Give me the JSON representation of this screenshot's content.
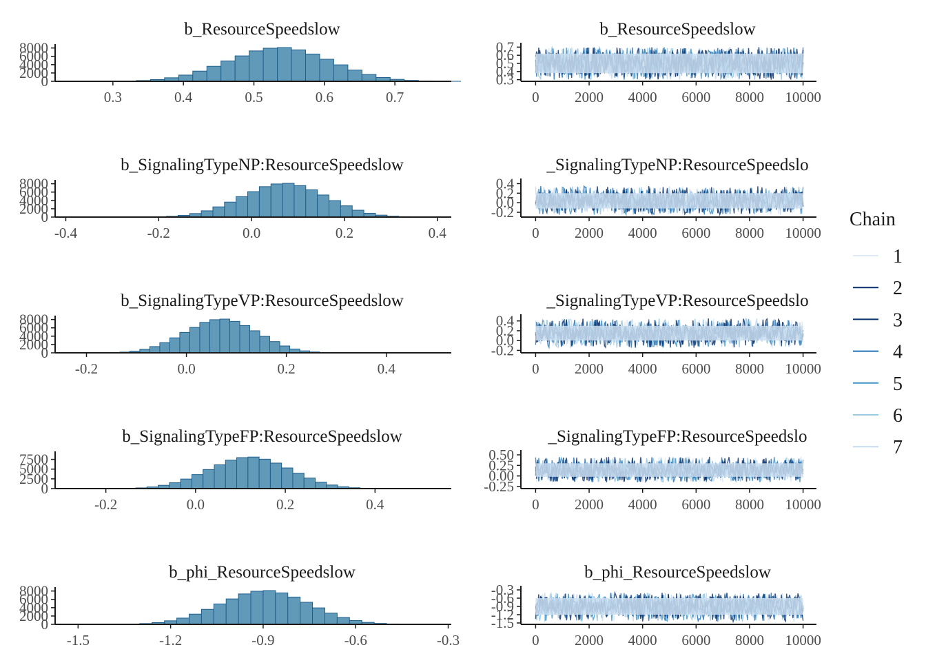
{
  "legend": {
    "title": "Chain",
    "items": [
      {
        "label": "1",
        "color": "#deebf7"
      },
      {
        "label": "2",
        "color": "#08306b"
      },
      {
        "label": "3",
        "color": "#08306b"
      },
      {
        "label": "4",
        "color": "#2171b5"
      },
      {
        "label": "5",
        "color": "#4292c6"
      },
      {
        "label": "6",
        "color": "#9ecae1"
      },
      {
        "label": "7",
        "color": "#c6dbef"
      }
    ]
  },
  "colors": {
    "hist_fill": "#6199b9",
    "hist_stroke": "#1f5f8b",
    "trace_band": "#cddff0",
    "trace_dark": "#0b3c6e",
    "axis": "#1a1a1a"
  },
  "chart_data": [
    {
      "type": "bar",
      "title": "b_ResourceSpeedslow",
      "xlim": [
        0.22,
        0.78
      ],
      "xticks": [
        0.3,
        0.4,
        0.5,
        0.6,
        0.7
      ],
      "xtick_labels": [
        "0.3",
        "0.4",
        "0.5",
        "0.6",
        "0.7"
      ],
      "ylim": [
        0,
        8600
      ],
      "yticks": [
        0,
        2000,
        4000,
        6000,
        8000
      ],
      "ytick_labels": [
        "0",
        "2000",
        "4000",
        "6000",
        "8000"
      ],
      "bin_start": 0.2933,
      "bin_width": 0.02,
      "values": [
        20,
        60,
        180,
        420,
        850,
        1500,
        2450,
        3600,
        4900,
        6100,
        7300,
        7950,
        8100,
        7550,
        6550,
        5300,
        3950,
        2700,
        1650,
        920,
        470,
        210,
        90,
        35,
        12
      ]
    },
    {
      "type": "line",
      "title": "b_ResourceSpeedslow",
      "xlim": [
        -500,
        10500
      ],
      "xticks": [
        0,
        2000,
        4000,
        6000,
        8000,
        10000
      ],
      "xtick_labels": [
        "0",
        "2000",
        "4000",
        "6000",
        "8000",
        "10000"
      ],
      "ylim": [
        0.28,
        0.72
      ],
      "yticks": [
        0.3,
        0.4,
        0.5,
        0.6,
        0.7
      ],
      "ytick_labels": [
        "0.3",
        "0.4",
        "0.5",
        "0.6",
        "0.7"
      ],
      "band": [
        0.3,
        0.7
      ],
      "core": [
        0.38,
        0.62
      ],
      "iterations": 10000,
      "chains": 7
    },
    {
      "type": "bar",
      "title": "b_SignalingTypeNP:ResourceSpeedslow",
      "xlim": [
        -0.42,
        0.43
      ],
      "xticks": [
        -0.4,
        -0.2,
        0.0,
        0.2,
        0.4
      ],
      "xtick_labels": [
        "-0.4",
        "-0.2",
        "0.0",
        "0.2",
        "0.4"
      ],
      "ylim": [
        0,
        8600
      ],
      "yticks": [
        0,
        2000,
        4000,
        6000,
        8000
      ],
      "ytick_labels": [
        "0",
        "2000",
        "4000",
        "6000",
        "8000"
      ],
      "bin_start": -0.2333,
      "bin_width": 0.025,
      "values": [
        20,
        60,
        180,
        420,
        850,
        1500,
        2450,
        3600,
        4900,
        6100,
        7300,
        7950,
        8100,
        7550,
        6550,
        5300,
        3950,
        2700,
        1650,
        920,
        470,
        210,
        90,
        35,
        12
      ]
    },
    {
      "type": "line",
      "title": "b_SignalingTypeNP:ResourceSpeedslow",
      "title_display": "_SignalingTypeNP:ResourceSpeedslo",
      "xlim": [
        -500,
        10500
      ],
      "xticks": [
        0,
        2000,
        4000,
        6000,
        8000,
        10000
      ],
      "xtick_labels": [
        "0",
        "2000",
        "4000",
        "6000",
        "8000",
        "10000"
      ],
      "ylim": [
        -0.3,
        0.45
      ],
      "yticks": [
        -0.2,
        0.0,
        0.2,
        0.4
      ],
      "ytick_labels": [
        "-0.2",
        "0.0",
        "0.2",
        "0.4"
      ],
      "band": [
        -0.25,
        0.35
      ],
      "core": [
        -0.12,
        0.2
      ],
      "iterations": 10000,
      "chains": 7
    },
    {
      "type": "bar",
      "title": "b_SignalingTypeVP:ResourceSpeedslow",
      "xlim": [
        -0.26,
        0.53
      ],
      "xticks": [
        -0.2,
        0.0,
        0.2,
        0.4
      ],
      "xtick_labels": [
        "-0.2",
        "0.0",
        "0.2",
        "0.4"
      ],
      "ylim": [
        0,
        8600
      ],
      "yticks": [
        0,
        2000,
        4000,
        6000,
        8000
      ],
      "ytick_labels": [
        "0",
        "2000",
        "4000",
        "6000",
        "8000"
      ],
      "bin_start": -0.1733,
      "bin_width": 0.02,
      "values": [
        20,
        60,
        180,
        420,
        850,
        1500,
        2450,
        3600,
        4900,
        6100,
        7300,
        7950,
        8100,
        7550,
        6550,
        5300,
        3950,
        2700,
        1650,
        920,
        470,
        210,
        90,
        35,
        12
      ]
    },
    {
      "type": "line",
      "title": "b_SignalingTypeVP:ResourceSpeedslow",
      "title_display": "_SignalingTypeVP:ResourceSpeedslo",
      "xlim": [
        -500,
        10500
      ],
      "xticks": [
        0,
        2000,
        4000,
        6000,
        8000,
        10000
      ],
      "xtick_labels": [
        "0",
        "2000",
        "4000",
        "6000",
        "8000",
        "10000"
      ],
      "ylim": [
        -0.25,
        0.48
      ],
      "yticks": [
        -0.2,
        0.0,
        0.2,
        0.4
      ],
      "ytick_labels": [
        "-0.2",
        "0.0",
        "0.2",
        "0.4"
      ],
      "band": [
        -0.15,
        0.45
      ],
      "core": [
        0.0,
        0.3
      ],
      "iterations": 10000,
      "chains": 7
    },
    {
      "type": "bar",
      "title": "b_SignalingTypeFP:ResourceSpeedslow",
      "xlim": [
        -0.31,
        0.57
      ],
      "xticks": [
        -0.2,
        0.0,
        0.2,
        0.4
      ],
      "xtick_labels": [
        "-0.2",
        "0.0",
        "0.2",
        "0.4"
      ],
      "ylim": [
        0,
        9200
      ],
      "yticks": [
        0,
        2500,
        5000,
        7500
      ],
      "ytick_labels": [
        "0",
        "2500",
        "5000",
        "7500"
      ],
      "bin_start": -0.1833,
      "bin_width": 0.025,
      "values": [
        20,
        60,
        180,
        420,
        850,
        1500,
        2450,
        3600,
        4900,
        6100,
        7300,
        7950,
        8100,
        7550,
        6550,
        5300,
        3950,
        2700,
        1650,
        920,
        470,
        210,
        90,
        35,
        12
      ]
    },
    {
      "type": "line",
      "title": "b_SignalingTypeFP:ResourceSpeedslow",
      "title_display": "_SignalingTypeFP:ResourceSpeedslo",
      "xlim": [
        -500,
        10500
      ],
      "xticks": [
        0,
        2000,
        4000,
        6000,
        8000,
        10000
      ],
      "xtick_labels": [
        "0",
        "2000",
        "4000",
        "6000",
        "8000",
        "10000"
      ],
      "ylim": [
        -0.3,
        0.55
      ],
      "yticks": [
        -0.25,
        0.0,
        0.25,
        0.5
      ],
      "ytick_labels": [
        "-0.25",
        "0.00",
        "0.25",
        "0.50"
      ],
      "band": [
        -0.15,
        0.45
      ],
      "core": [
        -0.02,
        0.3
      ],
      "iterations": 10000,
      "chains": 7
    },
    {
      "type": "bar",
      "title": "b_phi_ResourceSpeedslow",
      "xlim": [
        -1.57,
        -0.29
      ],
      "xticks": [
        -1.5,
        -1.2,
        -0.9,
        -0.6,
        -0.3
      ],
      "xtick_labels": [
        "-1.5",
        "-1.2",
        "-0.9",
        "-0.6",
        "-0.3"
      ],
      "ylim": [
        0,
        8600
      ],
      "yticks": [
        0,
        2000,
        4000,
        6000,
        8000
      ],
      "ytick_labels": [
        "0",
        "2000",
        "4000",
        "6000",
        "8000"
      ],
      "bin_start": -1.38,
      "bin_width": 0.04,
      "values": [
        20,
        60,
        180,
        420,
        850,
        1500,
        2450,
        3600,
        4900,
        6100,
        7300,
        7950,
        8100,
        7550,
        6550,
        5300,
        3950,
        2700,
        1650,
        920,
        470,
        210,
        90,
        35,
        12
      ]
    },
    {
      "type": "line",
      "title": "b_phi_ResourceSpeedslow",
      "xlim": [
        -500,
        10500
      ],
      "xticks": [
        0,
        2000,
        4000,
        6000,
        8000,
        10000
      ],
      "xtick_labels": [
        "0",
        "2000",
        "4000",
        "6000",
        "8000",
        "10000"
      ],
      "ylim": [
        -1.55,
        -0.25
      ],
      "yticks": [
        -1.5,
        -1.2,
        -0.9,
        -0.6,
        -0.3
      ],
      "ytick_labels": [
        "-1.5",
        "-1.2",
        "-0.9",
        "-0.6",
        "-0.3"
      ],
      "band": [
        -1.45,
        -0.4
      ],
      "core": [
        -1.2,
        -0.6
      ],
      "iterations": 10000,
      "chains": 7
    }
  ]
}
